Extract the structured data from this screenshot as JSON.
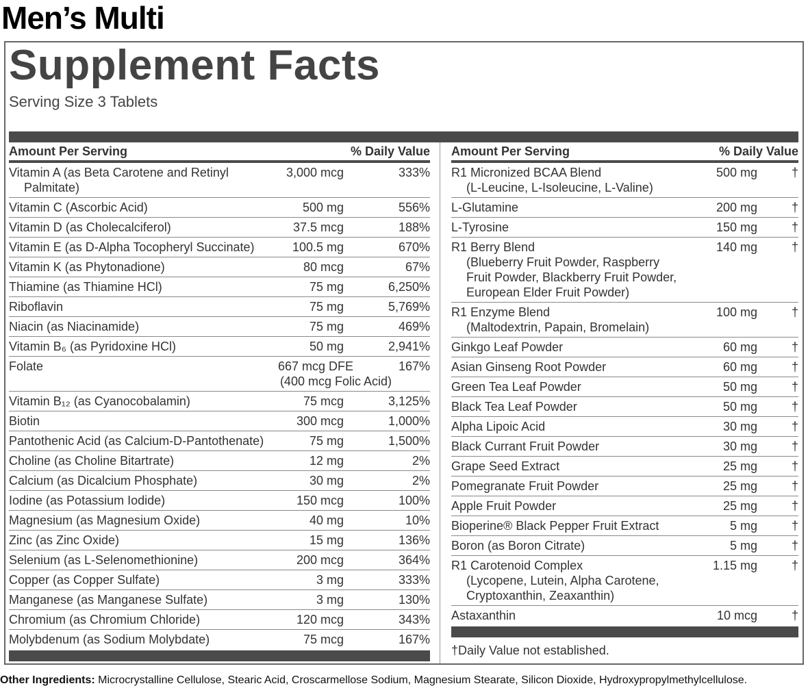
{
  "product_title": "Men’s Multi",
  "facts_title": "Supplement Facts",
  "serving_size": "Serving Size 3 Tablets",
  "header": {
    "amount": "Amount Per Serving",
    "dv": "% Daily Value"
  },
  "left_rows": [
    {
      "name": "Vitamin A (as Beta Carotene and Retinyl",
      "name2": "Palmitate)",
      "amount": "3,000 mcg",
      "dv": "333%"
    },
    {
      "name": "Vitamin C (Ascorbic Acid)",
      "amount": "500 mg",
      "dv": "556%"
    },
    {
      "name": "Vitamin D (as Cholecalciferol)",
      "amount": "37.5 mcg",
      "dv": "188%"
    },
    {
      "name": "Vitamin E (as D-Alpha Tocopheryl Succinate)",
      "amount": "100.5 mg",
      "dv": "670%"
    },
    {
      "name": "Vitamin K (as Phytonadione)",
      "amount": "80 mcg",
      "dv": "67%"
    },
    {
      "name": "Thiamine (as Thiamine HCl)",
      "amount": "75 mg",
      "dv": "6,250%"
    },
    {
      "name": "Riboflavin",
      "amount": "75 mg",
      "dv": "5,769%"
    },
    {
      "name": "Niacin (as Niacinamide)",
      "amount": "75 mg",
      "dv": "469%"
    },
    {
      "name": "Vitamin B₆ (as Pyridoxine HCl)",
      "amount": "50 mg",
      "dv": "2,941%"
    },
    {
      "name": "Folate",
      "amount": "667 mcg DFE",
      "amount2": "(400 mcg Folic Acid)",
      "dv": "167%"
    },
    {
      "name": "Vitamin B₁₂ (as Cyanocobalamin)",
      "amount": "75 mcg",
      "dv": "3,125%"
    },
    {
      "name": "Biotin",
      "amount": "300 mcg",
      "dv": "1,000%"
    },
    {
      "name": "Pantothenic Acid (as Calcium-D-Pantothenate)",
      "amount": "75 mg",
      "dv": "1,500%"
    },
    {
      "name": "Choline (as Choline Bitartrate)",
      "amount": "12 mg",
      "dv": "2%"
    },
    {
      "name": "Calcium (as Dicalcium Phosphate)",
      "amount": "30 mg",
      "dv": "2%"
    },
    {
      "name": "Iodine (as Potassium Iodide)",
      "amount": "150 mcg",
      "dv": "100%"
    },
    {
      "name": "Magnesium (as Magnesium Oxide)",
      "amount": "40 mg",
      "dv": "10%"
    },
    {
      "name": "Zinc (as Zinc Oxide)",
      "amount": "15 mg",
      "dv": "136%"
    },
    {
      "name": "Selenium (as L-Selenomethionine)",
      "amount": "200 mcg",
      "dv": "364%"
    },
    {
      "name": "Copper (as Copper Sulfate)",
      "amount": "3 mg",
      "dv": "333%"
    },
    {
      "name": "Manganese (as Manganese Sulfate)",
      "amount": "3 mg",
      "dv": "130%"
    },
    {
      "name": "Chromium (as Chromium Chloride)",
      "amount": "120 mcg",
      "dv": "343%"
    },
    {
      "name": "Molybdenum (as Sodium Molybdate)",
      "amount": "75 mcg",
      "dv": "167%"
    }
  ],
  "right_rows": [
    {
      "name": "R1 Micronized BCAA Blend",
      "name2": "(L-Leucine, L-Isoleucine, L-Valine)",
      "amount": "500 mg",
      "dv": "†"
    },
    {
      "name": "L-Glutamine",
      "amount": "200 mg",
      "dv": "†"
    },
    {
      "name": "L-Tyrosine",
      "amount": "150 mg",
      "dv": "†"
    },
    {
      "name": "R1 Berry Blend",
      "name2": "(Blueberry Fruit Powder, Raspberry Fruit Powder, Blackberry Fruit Powder, European Elder Fruit Powder)",
      "amount": "140 mg",
      "dv": "†"
    },
    {
      "name": "R1 Enzyme Blend",
      "name2": "(Maltodextrin, Papain, Bromelain)",
      "amount": "100 mg",
      "dv": "†"
    },
    {
      "name": "Ginkgo Leaf Powder",
      "amount": "60 mg",
      "dv": "†"
    },
    {
      "name": "Asian Ginseng Root Powder",
      "amount": "60 mg",
      "dv": "†"
    },
    {
      "name": "Green Tea Leaf Powder",
      "amount": "50 mg",
      "dv": "†"
    },
    {
      "name": "Black Tea Leaf Powder",
      "amount": "50 mg",
      "dv": "†"
    },
    {
      "name": "Alpha Lipoic Acid",
      "amount": "30 mg",
      "dv": "†"
    },
    {
      "name": "Black Currant Fruit Powder",
      "amount": "30 mg",
      "dv": "†"
    },
    {
      "name": "Grape Seed Extract",
      "amount": "25 mg",
      "dv": "†"
    },
    {
      "name": "Pomegranate Fruit Powder",
      "amount": "25 mg",
      "dv": "†"
    },
    {
      "name": "Apple Fruit Powder",
      "amount": "25 mg",
      "dv": "†"
    },
    {
      "name": "Bioperine® Black Pepper Fruit Extract",
      "amount": "5 mg",
      "dv": "†"
    },
    {
      "name": "Boron (as Boron Citrate)",
      "amount": "5 mg",
      "dv": "†"
    },
    {
      "name": "R1 Carotenoid Complex",
      "name2": "(Lycopene, Lutein, Alpha Carotene, Cryptoxanthin, Zeaxanthin)",
      "amount": "1.15 mg",
      "dv": "†"
    },
    {
      "name": "Astaxanthin",
      "amount": "10 mcg",
      "dv": "†"
    }
  ],
  "footnote": "†Daily Value not established.",
  "other_ingredients": {
    "label": "Other Ingredients:",
    "text": " Microcrystalline Cellulose, Stearic Acid, Croscarmellose Sodium, Magnesium Stearate, Silicon Dioxide, Hydroxypropylmethylcellulose."
  }
}
